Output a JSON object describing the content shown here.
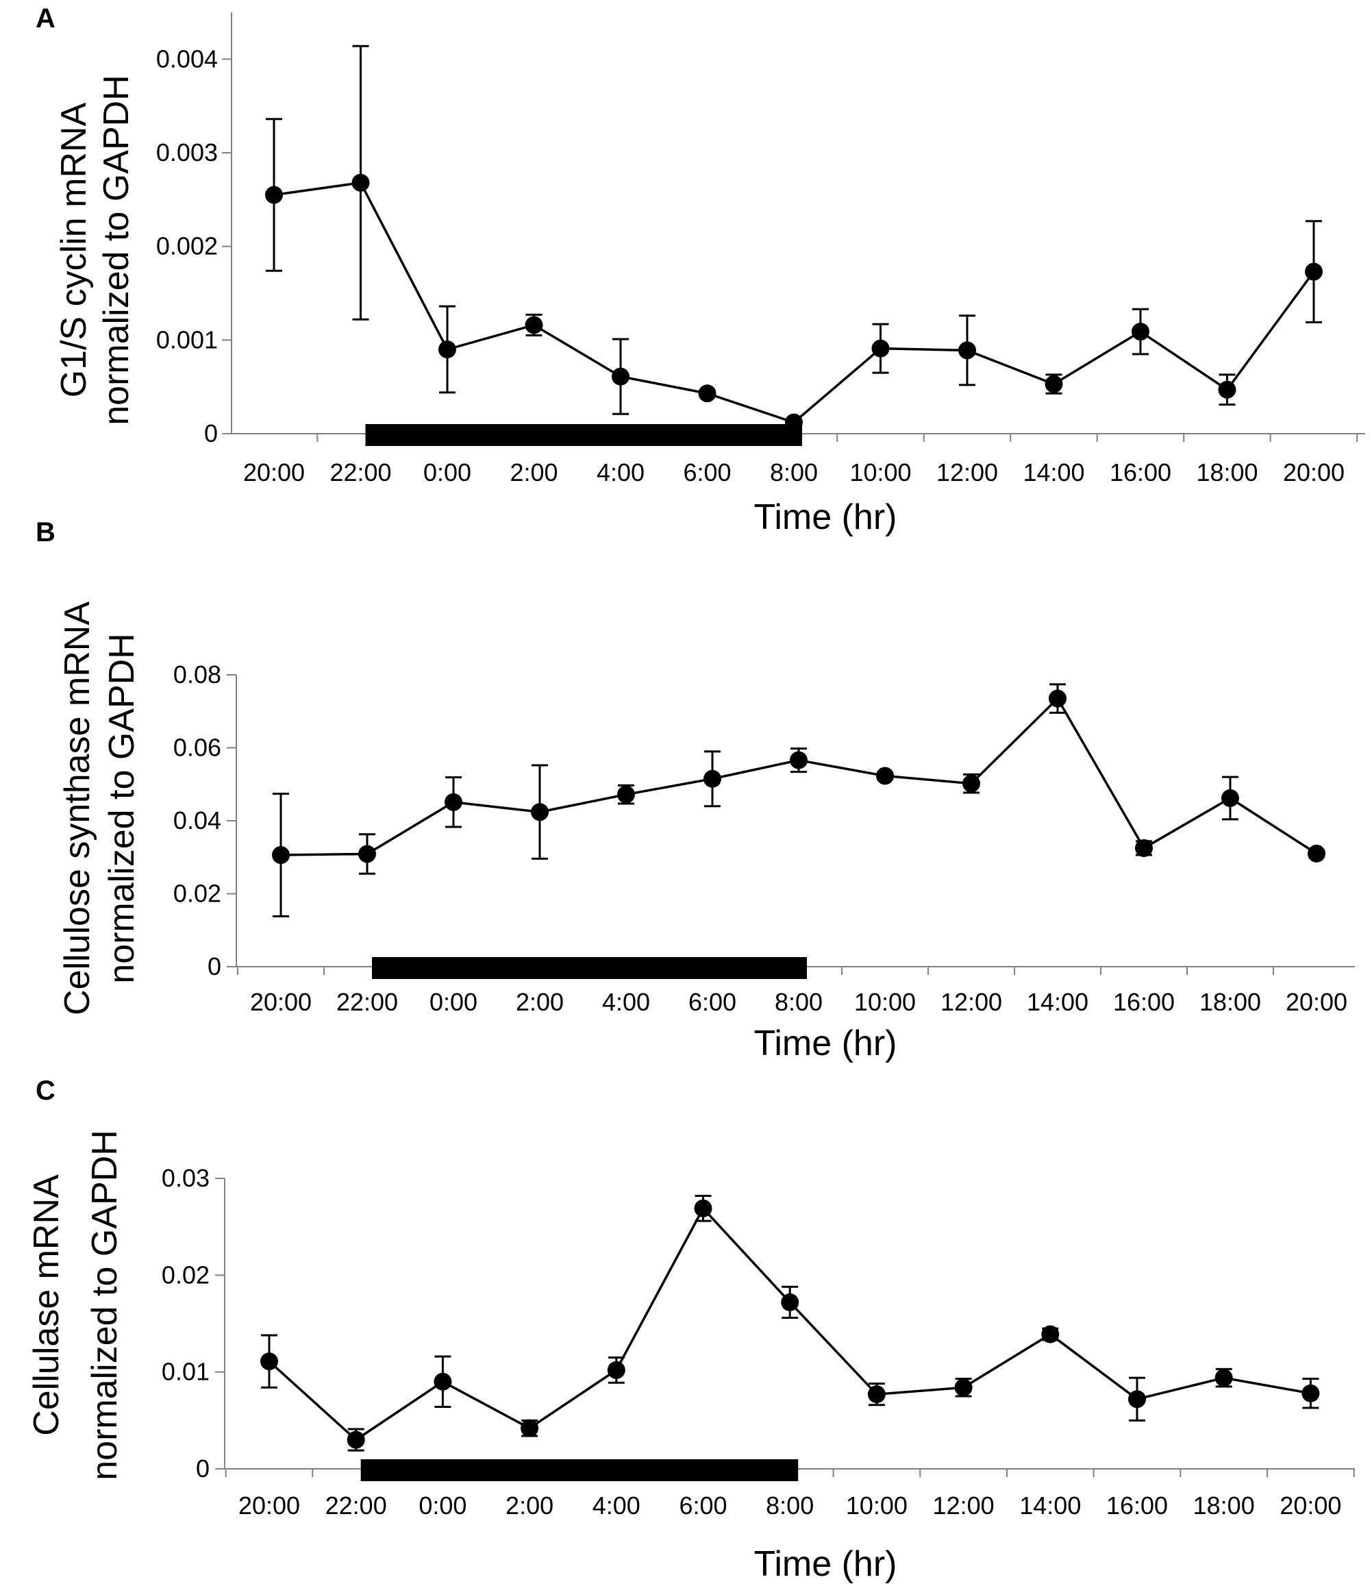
{
  "chart_data": [
    {
      "panel": "A",
      "type": "line",
      "xlabel": "Time (hr)",
      "ylabel_line1": "G1/S cyclin mRNA",
      "ylabel_line2": "normalized to GAPDH",
      "categories": [
        "20:00",
        "22:00",
        "0:00",
        "2:00",
        "4:00",
        "6:00",
        "8:00",
        "10:00",
        "12:00",
        "14:00",
        "16:00",
        "18:00",
        "20:00"
      ],
      "yticks": [
        0,
        0.001,
        0.002,
        0.003,
        0.004
      ],
      "ytick_labels": [
        "0",
        "0.001",
        "0.002",
        "0.003",
        "0.004"
      ],
      "ylim": [
        0,
        0.0045
      ],
      "dark_period": [
        "22:00",
        "8:00"
      ],
      "values": [
        0.00255,
        0.00268,
        0.0009,
        0.00116,
        0.00061,
        0.00043,
        0.00012,
        0.00091,
        0.00089,
        0.00053,
        0.00109,
        0.00047,
        0.00173
      ],
      "errors": [
        0.00081,
        0.00146,
        0.00046,
        0.00011,
        0.0004,
        3e-05,
        3e-05,
        0.00026,
        0.00037,
        0.0001,
        0.00024,
        0.00016,
        0.00054
      ]
    },
    {
      "panel": "B",
      "type": "line",
      "xlabel": "Time (hr)",
      "ylabel_line1": "Cellulose synthase mRNA",
      "ylabel_line2": "normalized to GAPDH",
      "categories": [
        "20:00",
        "22:00",
        "0:00",
        "2:00",
        "4:00",
        "6:00",
        "8:00",
        "10:00",
        "12:00",
        "14:00",
        "16:00",
        "18:00",
        "20:00"
      ],
      "yticks": [
        0,
        0.02,
        0.04,
        0.06,
        0.08
      ],
      "ytick_labels": [
        "0",
        "0.02",
        "0.04",
        "0.06",
        "0.08"
      ],
      "ylim": [
        0,
        0.08
      ],
      "dark_period": [
        "22:00",
        "8:00"
      ],
      "values": [
        0.0306,
        0.0309,
        0.0451,
        0.0424,
        0.0472,
        0.0515,
        0.0566,
        0.0523,
        0.0502,
        0.0735,
        0.0325,
        0.0462,
        0.031
      ],
      "errors": [
        0.0168,
        0.0054,
        0.0068,
        0.0128,
        0.0025,
        0.0075,
        0.0032,
        0.0009,
        0.0025,
        0.0039,
        0.0019,
        0.0058,
        0.0009
      ]
    },
    {
      "panel": "C",
      "type": "line",
      "xlabel": "Time (hr)",
      "ylabel_line1": "Cellulase mRNA",
      "ylabel_line2": "normalized to GAPDH",
      "categories": [
        "20:00",
        "22:00",
        "0:00",
        "2:00",
        "4:00",
        "6:00",
        "8:00",
        "10:00",
        "12:00",
        "14:00",
        "16:00",
        "18:00",
        "20:00"
      ],
      "yticks": [
        0,
        0.01,
        0.02,
        0.03
      ],
      "ytick_labels": [
        "0",
        "0.01",
        "0.02",
        "0.03"
      ],
      "ylim": [
        0,
        0.03
      ],
      "dark_period": [
        "22:00",
        "8:00"
      ],
      "values": [
        0.0111,
        0.003,
        0.009,
        0.0042,
        0.0102,
        0.0269,
        0.0172,
        0.0077,
        0.0084,
        0.0139,
        0.0072,
        0.0094,
        0.0078
      ],
      "errors": [
        0.0027,
        0.0011,
        0.0026,
        0.0008,
        0.0013,
        0.0013,
        0.0016,
        0.0011,
        0.0009,
        0.0006,
        0.0022,
        0.0009,
        0.0015
      ]
    }
  ]
}
